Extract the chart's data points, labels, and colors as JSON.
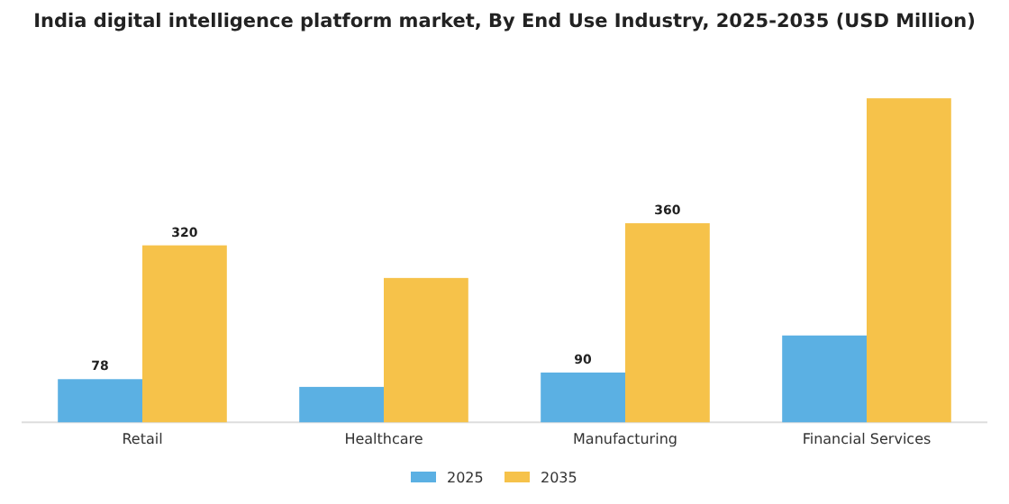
{
  "chart_data": {
    "type": "bar",
    "title": "India digital intelligence platform market, By End Use Industry, 2025-2035 (USD Million)",
    "categories": [
      "Retail",
      "Healthcare",
      "Manufacturing",
      "Financial Services"
    ],
    "legend": "bottom",
    "series": [
      {
        "name": "2025",
        "color": "#5bb0e3",
        "values": [
          78,
          64,
          90,
          157
        ],
        "value_labels": [
          "78",
          null,
          "90",
          null
        ]
      },
      {
        "name": "2035",
        "color": "#f6c24a",
        "values": [
          320,
          261,
          360,
          586
        ],
        "value_labels": [
          "320",
          null,
          "360",
          null
        ]
      }
    ]
  }
}
